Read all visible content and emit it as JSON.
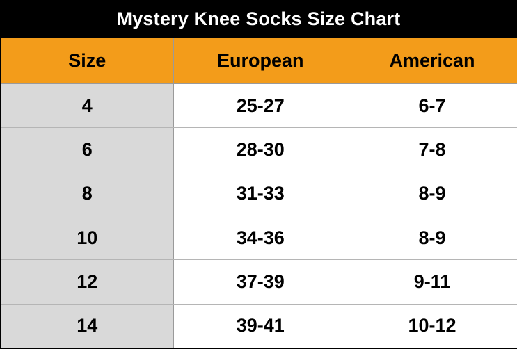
{
  "title": "Mystery Knee Socks Size Chart",
  "colors": {
    "title_background": "#000000",
    "title_text": "#ffffff",
    "header_background": "#f39c1a",
    "size_column_background": "#d9d9d9"
  },
  "table": {
    "headers": [
      "Size",
      "European",
      "American"
    ],
    "rows": [
      [
        "4",
        "25-27",
        "6-7"
      ],
      [
        "6",
        "28-30",
        "7-8"
      ],
      [
        "8",
        "31-33",
        "8-9"
      ],
      [
        "10",
        "34-36",
        "8-9"
      ],
      [
        "12",
        "37-39",
        "9-11"
      ],
      [
        "14",
        "39-41",
        "10-12"
      ]
    ]
  }
}
